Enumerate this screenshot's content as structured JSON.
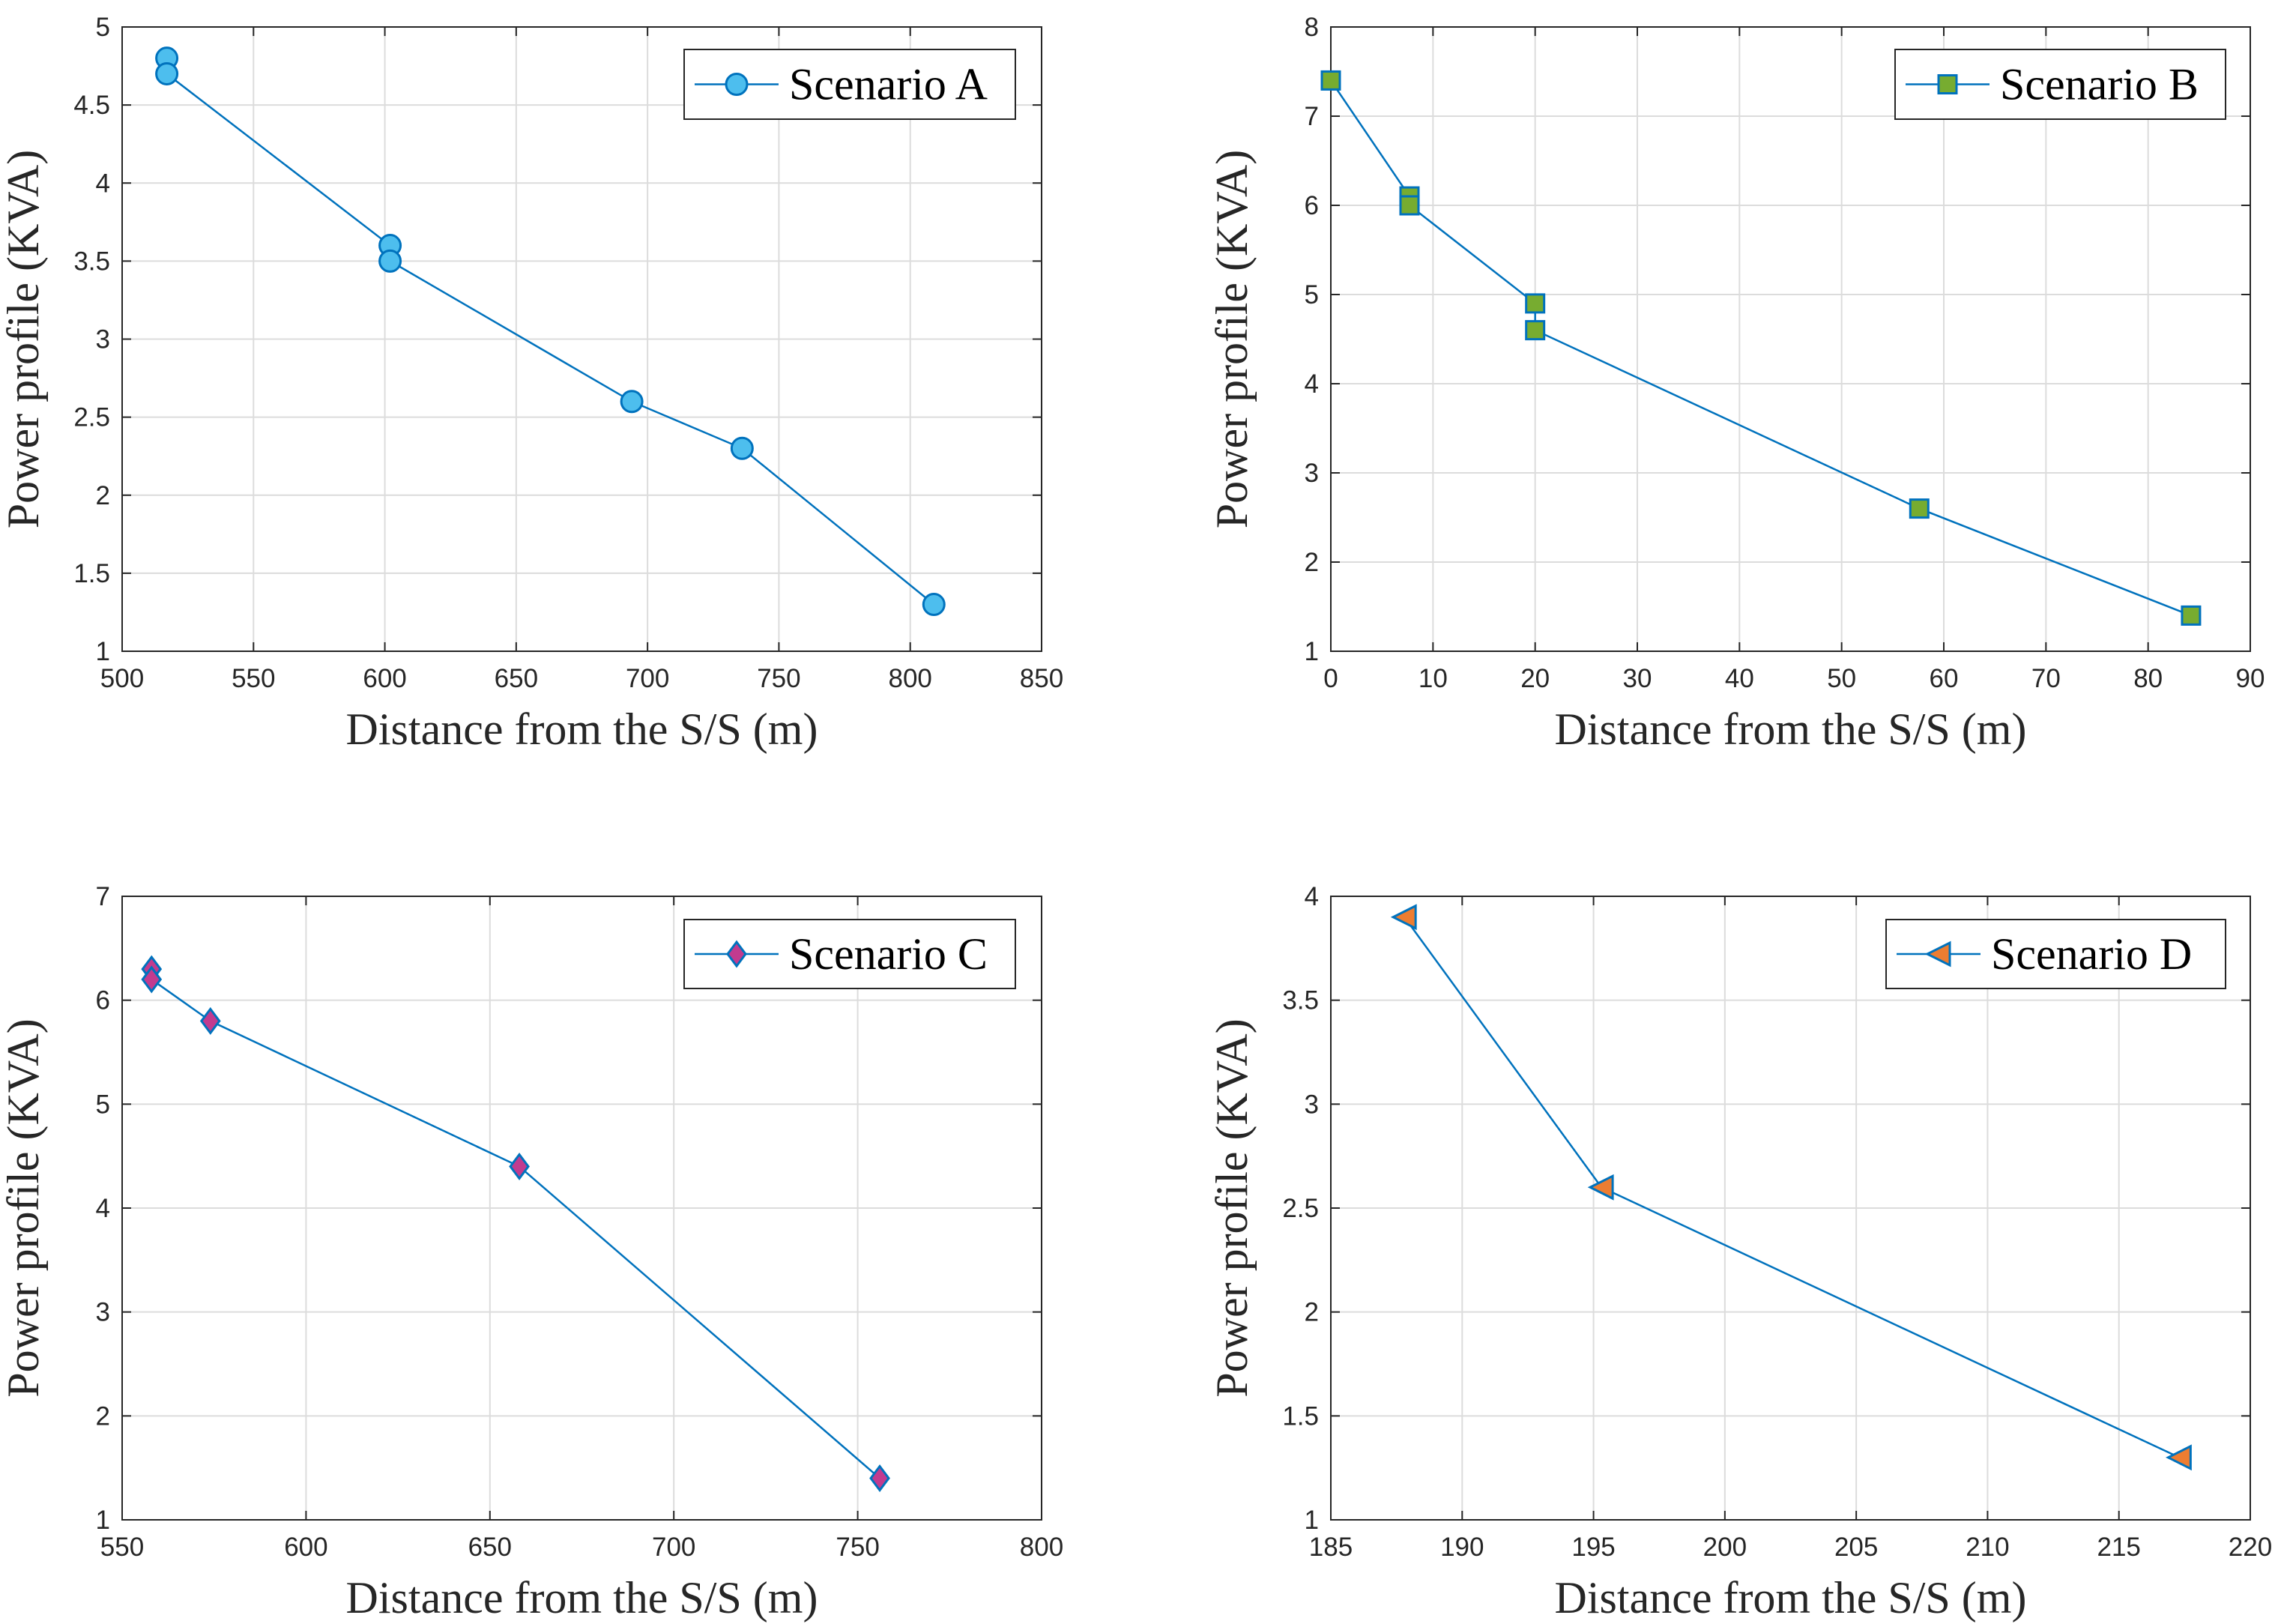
{
  "chart_data": [
    {
      "type": "line",
      "title": "",
      "xlabel": "Distance from the S/S (m)",
      "ylabel": "Power profile (KVA)",
      "xlim": [
        500,
        850
      ],
      "ylim": [
        1,
        5
      ],
      "xticks": [
        500,
        550,
        600,
        650,
        700,
        750,
        800,
        850
      ],
      "yticks": [
        1,
        1.5,
        2,
        2.5,
        3,
        3.5,
        4,
        4.5,
        5
      ],
      "grid": true,
      "legend_position": "top-right",
      "series": [
        {
          "name": "Scenario A",
          "marker": "circle",
          "line_color": "#0072BD",
          "marker_fill": "#4DBEEE",
          "marker_edge": "#0072BD",
          "x": [
            517,
            517,
            602,
            602,
            694,
            736,
            809
          ],
          "y": [
            4.8,
            4.7,
            3.6,
            3.5,
            2.6,
            2.3,
            1.3
          ]
        }
      ]
    },
    {
      "type": "line",
      "title": "",
      "xlabel": "Distance from the S/S (m)",
      "ylabel": "Power profile (KVA)",
      "xlim": [
        0,
        90
      ],
      "ylim": [
        1,
        8
      ],
      "xticks": [
        0,
        10,
        20,
        30,
        40,
        50,
        60,
        70,
        80,
        90
      ],
      "yticks": [
        1,
        2,
        3,
        4,
        5,
        6,
        7,
        8
      ],
      "grid": true,
      "legend_position": "top-right",
      "series": [
        {
          "name": "Scenario B",
          "marker": "square",
          "line_color": "#0072BD",
          "marker_fill": "#77AC30",
          "marker_edge": "#0072BD",
          "x": [
            0,
            7.7,
            7.7,
            20,
            20,
            57.6,
            84.2
          ],
          "y": [
            7.4,
            6.1,
            6.0,
            4.9,
            4.6,
            2.6,
            1.4
          ]
        }
      ]
    },
    {
      "type": "line",
      "title": "",
      "xlabel": "Distance from the S/S (m)",
      "ylabel": "Power profile (KVA)",
      "xlim": [
        550,
        800
      ],
      "ylim": [
        1,
        7
      ],
      "xticks": [
        550,
        600,
        650,
        700,
        750,
        800
      ],
      "yticks": [
        1,
        2,
        3,
        4,
        5,
        6,
        7
      ],
      "grid": true,
      "legend_position": "top-right",
      "series": [
        {
          "name": "Scenario C",
          "marker": "diamond",
          "line_color": "#0072BD",
          "marker_fill": "#C23B8F",
          "marker_edge": "#0072BD",
          "x": [
            558,
            558,
            574,
            658,
            756
          ],
          "y": [
            6.3,
            6.2,
            5.8,
            4.4,
            1.4
          ]
        }
      ]
    },
    {
      "type": "line",
      "title": "",
      "xlabel": "Distance from the S/S (m)",
      "ylabel": "Power profile (KVA)",
      "xlim": [
        185,
        220
      ],
      "ylim": [
        1,
        4
      ],
      "xticks": [
        185,
        190,
        195,
        200,
        205,
        210,
        215,
        220
      ],
      "yticks": [
        1,
        1.5,
        2,
        2.5,
        3,
        3.5,
        4
      ],
      "grid": true,
      "legend_position": "top-right",
      "series": [
        {
          "name": "Scenario D",
          "marker": "triangle-left",
          "line_color": "#0072BD",
          "marker_fill": "#ED7D31",
          "marker_edge": "#0072BD",
          "x": [
            187.8,
            195.3,
            217.3
          ],
          "y": [
            3.9,
            2.6,
            1.3
          ]
        }
      ]
    }
  ]
}
